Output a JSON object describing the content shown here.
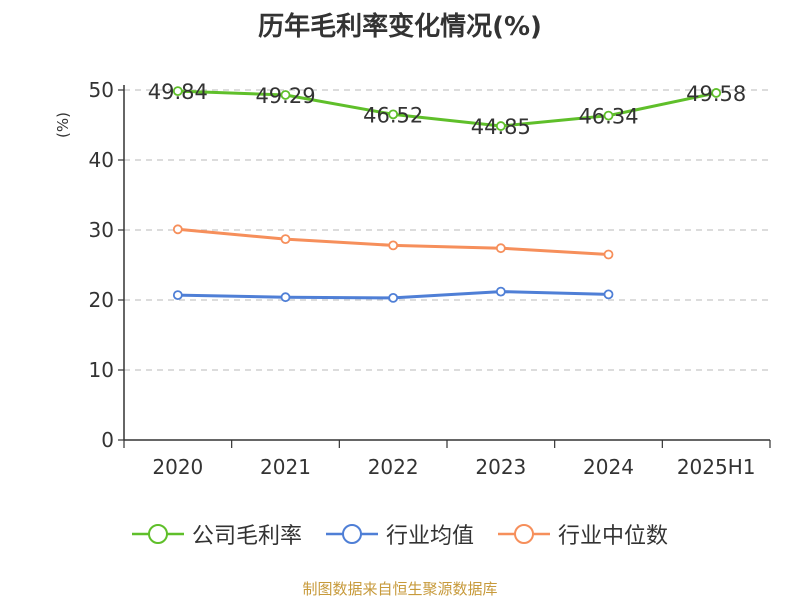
{
  "chart_data": {
    "type": "line",
    "title": "历年毛利率变化情况(%)",
    "ylabel": "(%)",
    "xlabel": "",
    "ylim": [
      0,
      50
    ],
    "yticks": [
      0,
      10,
      20,
      30,
      40,
      50
    ],
    "categories": [
      "2020",
      "2021",
      "2022",
      "2023",
      "2024",
      "2025H1"
    ],
    "grid": true,
    "legend_position": "bottom",
    "series": [
      {
        "name": "公司毛利率",
        "color": "#5fbf2a",
        "values": [
          49.84,
          49.29,
          46.52,
          44.85,
          46.34,
          49.58
        ],
        "labels": [
          "49.84",
          "49.29",
          "46.52",
          "44.85",
          "46.34",
          "49.58"
        ]
      },
      {
        "name": "行业均值",
        "color": "#4f7fd6",
        "values": [
          20.7,
          20.4,
          20.3,
          21.2,
          20.8,
          null
        ],
        "labels": []
      },
      {
        "name": "行业中位数",
        "color": "#f68f5b",
        "values": [
          30.1,
          28.7,
          27.8,
          27.4,
          26.5,
          null
        ],
        "labels": []
      }
    ]
  },
  "source": "制图数据来自恒生聚源数据库"
}
